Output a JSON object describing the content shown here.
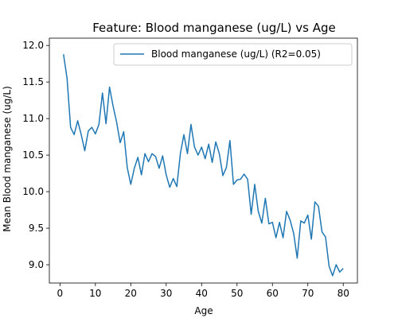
{
  "chart_data": {
    "type": "line",
    "title": "Feature: Blood manganese (ug/L) vs Age",
    "xlabel": "Age",
    "ylabel": "Mean Blood manganese (ug/L)",
    "xlim": [
      -3,
      84
    ],
    "ylim": [
      8.75,
      12.1
    ],
    "xticks": [
      0,
      10,
      20,
      30,
      40,
      50,
      60,
      70,
      80
    ],
    "yticks": [
      9.0,
      9.5,
      10.0,
      10.5,
      11.0,
      11.5,
      12.0
    ],
    "ytick_labels": [
      "9.0",
      "9.5",
      "10.0",
      "10.5",
      "11.0",
      "11.5",
      "12.0"
    ],
    "grid": false,
    "legend_position": "top-right",
    "colors": {
      "series": "#1f77b4"
    },
    "series": [
      {
        "name": "Blood manganese (ug/L) (R2=0.05)",
        "x": [
          1,
          2,
          3,
          4,
          5,
          6,
          7,
          8,
          9,
          10,
          11,
          12,
          13,
          14,
          15,
          16,
          17,
          18,
          19,
          20,
          21,
          22,
          23,
          24,
          25,
          26,
          27,
          28,
          29,
          30,
          31,
          32,
          33,
          34,
          35,
          36,
          37,
          38,
          39,
          40,
          41,
          42,
          43,
          44,
          45,
          46,
          47,
          48,
          49,
          50,
          51,
          52,
          53,
          54,
          55,
          56,
          57,
          58,
          59,
          60,
          61,
          62,
          63,
          64,
          65,
          66,
          67,
          68,
          69,
          70,
          71,
          72,
          73,
          74,
          75,
          76,
          77,
          78,
          79,
          80
        ],
        "y": [
          11.88,
          11.55,
          10.88,
          10.78,
          10.97,
          10.78,
          10.56,
          10.83,
          10.88,
          10.79,
          10.92,
          11.35,
          10.93,
          11.43,
          11.17,
          10.95,
          10.67,
          10.82,
          10.33,
          10.1,
          10.32,
          10.47,
          10.23,
          10.52,
          10.41,
          10.52,
          10.48,
          10.32,
          10.49,
          10.23,
          10.06,
          10.18,
          10.07,
          10.52,
          10.78,
          10.52,
          10.92,
          10.61,
          10.5,
          10.61,
          10.45,
          10.65,
          10.4,
          10.68,
          10.52,
          10.22,
          10.33,
          10.7,
          10.1,
          10.16,
          10.17,
          10.24,
          10.17,
          9.69,
          10.1,
          9.73,
          9.57,
          9.91,
          9.56,
          9.58,
          9.37,
          9.58,
          9.37,
          9.73,
          9.61,
          9.43,
          9.09,
          9.6,
          9.57,
          9.68,
          9.35,
          9.86,
          9.8,
          9.45,
          9.38,
          8.98,
          8.85,
          9.0,
          8.9,
          8.95
        ]
      }
    ]
  }
}
